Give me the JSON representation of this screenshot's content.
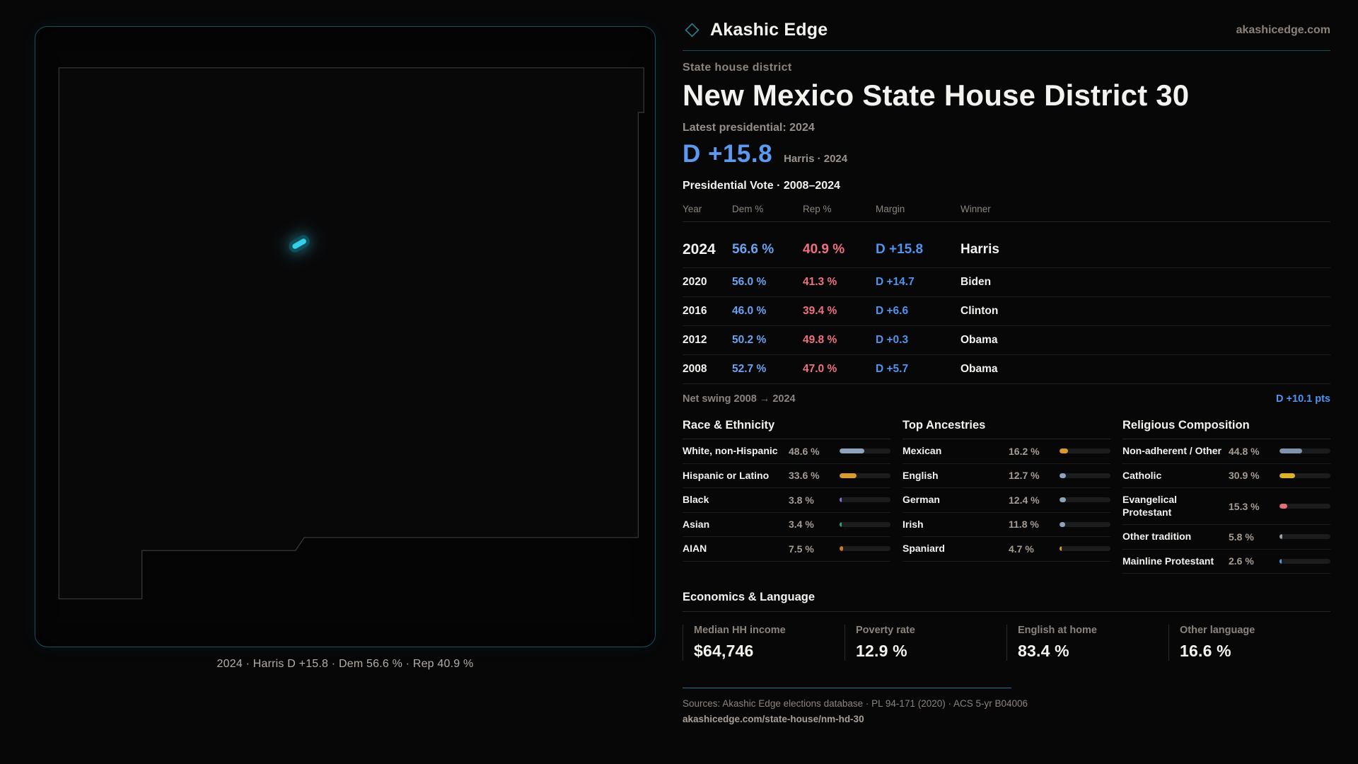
{
  "brand": {
    "name": "Akashic Edge",
    "site": "akashicedge.com"
  },
  "header": {
    "kicker": "State house district",
    "title": "New Mexico State House District 30",
    "latest_label": "Latest presidential: 2024",
    "headline_margin": "D +15.8",
    "headline_detail": "Harris · 2024"
  },
  "table": {
    "title": "Presidential Vote · 2008–2024",
    "columns": [
      "Year",
      "Dem %",
      "Rep %",
      "Margin",
      "Winner"
    ],
    "rows": [
      {
        "year": "2024",
        "dem": "56.6 %",
        "rep": "40.9 %",
        "margin": "D +15.8",
        "winner": "Harris"
      },
      {
        "year": "2020",
        "dem": "56.0 %",
        "rep": "41.3 %",
        "margin": "D +14.7",
        "winner": "Biden"
      },
      {
        "year": "2016",
        "dem": "46.0 %",
        "rep": "39.4 %",
        "margin": "D +6.6",
        "winner": "Clinton"
      },
      {
        "year": "2012",
        "dem": "50.2 %",
        "rep": "49.8 %",
        "margin": "D +0.3",
        "winner": "Obama"
      },
      {
        "year": "2008",
        "dem": "52.7 %",
        "rep": "47.0 %",
        "margin": "D +5.7",
        "winner": "Obama"
      }
    ]
  },
  "net_swing": {
    "label": "Net swing 2008 → 2024",
    "value": "D +10.1 pts"
  },
  "demographics": [
    {
      "title": "Race & Ethnicity",
      "rows": [
        {
          "label": "White, non-Hispanic",
          "value": "48.6 %",
          "pct": 48.6,
          "color": "#8fa3bd"
        },
        {
          "label": "Hispanic or Latino",
          "value": "33.6 %",
          "pct": 33.6,
          "color": "#d99b2e"
        },
        {
          "label": "Black",
          "value": "3.8 %",
          "pct": 3.8,
          "color": "#8e6fd8"
        },
        {
          "label": "Asian",
          "value": "3.4 %",
          "pct": 3.4,
          "color": "#27a87c"
        },
        {
          "label": "AIAN",
          "value": "7.5 %",
          "pct": 7.5,
          "color": "#cc7a22"
        }
      ]
    },
    {
      "title": "Top Ancestries",
      "rows": [
        {
          "label": "Mexican",
          "value": "16.2 %",
          "pct": 16.2,
          "color": "#d99b2e"
        },
        {
          "label": "English",
          "value": "12.7 %",
          "pct": 12.7,
          "color": "#8fa3bd"
        },
        {
          "label": "German",
          "value": "12.4 %",
          "pct": 12.4,
          "color": "#8fa3bd"
        },
        {
          "label": "Irish",
          "value": "11.8 %",
          "pct": 11.8,
          "color": "#8fa3bd"
        },
        {
          "label": "Spaniard",
          "value": "4.7 %",
          "pct": 4.7,
          "color": "#d99b2e"
        }
      ]
    },
    {
      "title": "Religious Composition",
      "rows": [
        {
          "label": "Non-adherent / Other",
          "value": "44.8 %",
          "pct": 44.8,
          "color": "#8093ab"
        },
        {
          "label": "Catholic",
          "value": "30.9 %",
          "pct": 30.9,
          "color": "#dcb327"
        },
        {
          "label": "Evangelical Protestant",
          "value": "15.3 %",
          "pct": 15.3,
          "color": "#e0707a"
        },
        {
          "label": "Other tradition",
          "value": "5.8 %",
          "pct": 5.8,
          "color": "#9aa0a8"
        },
        {
          "label": "Mainline Protestant",
          "value": "2.6 %",
          "pct": 2.6,
          "color": "#4d9de0"
        }
      ]
    }
  ],
  "economics": {
    "title": "Economics & Language",
    "stats": [
      {
        "label": "Median HH income",
        "value": "$64,746"
      },
      {
        "label": "Poverty rate",
        "value": "12.9 %"
      },
      {
        "label": "English at home",
        "value": "83.4 %"
      },
      {
        "label": "Other language",
        "value": "16.6 %"
      }
    ]
  },
  "map": {
    "caption": "2024 · Harris D +15.8 · Dem 56.6 % · Rep 40.9 %"
  },
  "footer": {
    "sources": "Sources: Akashic Edge elections database · PL 94-171 (2020) · ACS 5-yr B04006",
    "permalink": "akashicedge.com/state-house/nm-hd-30"
  },
  "colors": {
    "accent_teal": "#1b4f5c",
    "district_fill": "#36cfe8",
    "dem_blue": "#5b9af0",
    "rep_red": "#ee7181",
    "background": "#070708"
  },
  "chart_data": [
    {
      "type": "table",
      "title": "Presidential Vote · 2008–2024",
      "columns": [
        "Year",
        "Dem %",
        "Rep %",
        "Margin",
        "Winner"
      ],
      "rows": [
        [
          "2024",
          56.6,
          40.9,
          "D +15.8",
          "Harris"
        ],
        [
          "2020",
          56.0,
          41.3,
          "D +14.7",
          "Biden"
        ],
        [
          "2016",
          46.0,
          39.4,
          "D +6.6",
          "Clinton"
        ],
        [
          "2012",
          50.2,
          49.8,
          "D +0.3",
          "Obama"
        ],
        [
          "2008",
          52.7,
          47.0,
          "D +5.7",
          "Obama"
        ]
      ]
    },
    {
      "type": "bar",
      "title": "Race & Ethnicity",
      "categories": [
        "White, non-Hispanic",
        "Hispanic or Latino",
        "Black",
        "Asian",
        "AIAN"
      ],
      "values": [
        48.6,
        33.6,
        3.8,
        3.4,
        7.5
      ],
      "xlim": [
        0,
        100
      ]
    },
    {
      "type": "bar",
      "title": "Top Ancestries",
      "categories": [
        "Mexican",
        "English",
        "German",
        "Irish",
        "Spaniard"
      ],
      "values": [
        16.2,
        12.7,
        12.4,
        11.8,
        4.7
      ],
      "xlim": [
        0,
        100
      ]
    },
    {
      "type": "bar",
      "title": "Religious Composition",
      "categories": [
        "Non-adherent / Other",
        "Catholic",
        "Evangelical Protestant",
        "Other tradition",
        "Mainline Protestant"
      ],
      "values": [
        44.8,
        30.9,
        15.3,
        5.8,
        2.6
      ],
      "xlim": [
        0,
        100
      ]
    }
  ]
}
